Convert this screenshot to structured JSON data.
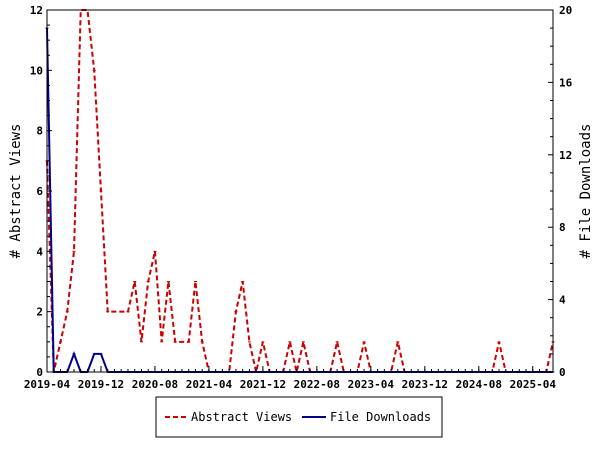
{
  "chart_data": {
    "type": "line",
    "xlabel": "",
    "ylabel_left": "# Abstract Views",
    "ylabel_right": "# File Downloads",
    "x_tick_labels": [
      "2019-04",
      "2019-12",
      "2020-08",
      "2021-04",
      "2021-12",
      "2022-08",
      "2023-04",
      "2023-12",
      "2024-08",
      "2025-04"
    ],
    "x_tick_month_index": [
      0,
      8,
      16,
      24,
      32,
      40,
      48,
      56,
      64,
      72
    ],
    "x_month_count": 76,
    "ylim_left": [
      0,
      12
    ],
    "yticks_left": [
      "0",
      "2",
      "4",
      "6",
      "8",
      "10",
      "12"
    ],
    "ylim_right": [
      0,
      20
    ],
    "yticks_right": [
      "0",
      "4",
      "8",
      "12",
      "16",
      "20"
    ],
    "grid": false,
    "legend_position": "bottom",
    "series": [
      {
        "name": "Abstract Views",
        "axis": "left",
        "color": "#cc0000",
        "dash": true,
        "values": [
          7,
          0,
          1,
          2,
          4,
          12,
          12,
          10,
          6,
          2,
          2,
          2,
          2,
          3,
          1,
          3,
          4,
          1,
          3,
          1,
          1,
          1,
          3,
          1,
          0,
          0,
          0,
          0,
          2,
          3,
          1,
          0,
          1,
          0,
          0,
          0,
          1,
          0,
          1,
          0,
          0,
          0,
          0,
          1,
          0,
          0,
          0,
          1,
          0,
          0,
          0,
          0,
          1,
          0,
          0,
          0,
          0,
          0,
          0,
          0,
          0,
          0,
          0,
          0,
          0,
          0,
          0,
          1,
          0,
          0,
          0,
          0,
          0,
          0,
          0,
          1
        ]
      },
      {
        "name": "File Downloads",
        "axis": "right",
        "color": "#00008b",
        "dash": false,
        "values": [
          19,
          0,
          0,
          0,
          1,
          0,
          0,
          1,
          1,
          0,
          0,
          0,
          0,
          0,
          0,
          0,
          0,
          0,
          0,
          0,
          0,
          0,
          0,
          0,
          0,
          0,
          0,
          0,
          0,
          0,
          0,
          0,
          0,
          0,
          0,
          0,
          0,
          0,
          0,
          0,
          0,
          0,
          0,
          0,
          0,
          0,
          0,
          0,
          0,
          0,
          0,
          0,
          0,
          0,
          0,
          0,
          0,
          0,
          0,
          0,
          0,
          0,
          0,
          0,
          0,
          0,
          0,
          0,
          0,
          0,
          0,
          0,
          0,
          0,
          0,
          0
        ]
      }
    ]
  }
}
